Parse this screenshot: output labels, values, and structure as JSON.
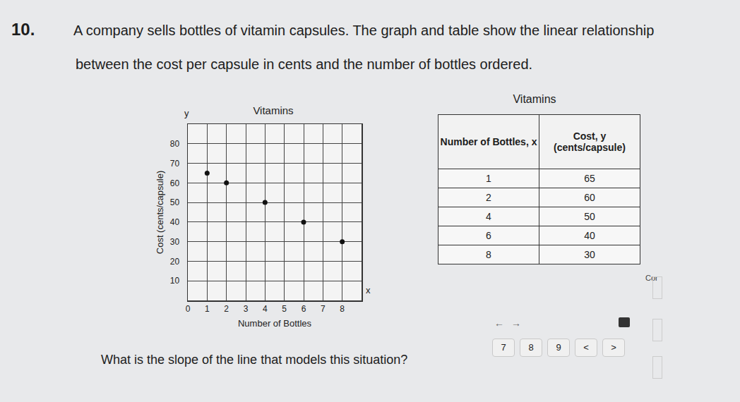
{
  "question_number": "10.",
  "intro": [
    "A company sells bottles of vitamin capsules. The graph and table show the linear relationship",
    "between the cost per capsule in cents and the number of bottles ordered."
  ],
  "chart_data": {
    "type": "scatter",
    "title": "Vitamins",
    "x_label": "Number of Bottles",
    "y_label": "Cost (cents/capsule)",
    "axis_letters": {
      "x": "x",
      "y": "y"
    },
    "x": [
      1,
      2,
      4,
      6,
      8
    ],
    "values": [
      65,
      60,
      50,
      40,
      30
    ],
    "xlim": [
      0,
      9
    ],
    "ylim": [
      0,
      90
    ],
    "xticks": [
      0,
      1,
      2,
      3,
      4,
      5,
      6,
      7,
      8
    ],
    "yticks": [
      10,
      20,
      30,
      40,
      50,
      60,
      70,
      80
    ],
    "grid": true,
    "color": "#111111",
    "marker": "circle"
  },
  "table": {
    "title": "Vitamins",
    "header": [
      "Number of Bottles, x",
      "Cost, y (cents/capsule)"
    ],
    "rows": [
      [
        "1",
        "65"
      ],
      [
        "2",
        "60"
      ],
      [
        "4",
        "50"
      ],
      [
        "6",
        "40"
      ],
      [
        "8",
        "30"
      ]
    ]
  },
  "question": "What is the slope of the line that models this situation?",
  "side_text": "Cor",
  "nav_keys": [
    "←",
    "→"
  ],
  "keys": [
    "7",
    "8",
    "9",
    "<",
    ">"
  ]
}
